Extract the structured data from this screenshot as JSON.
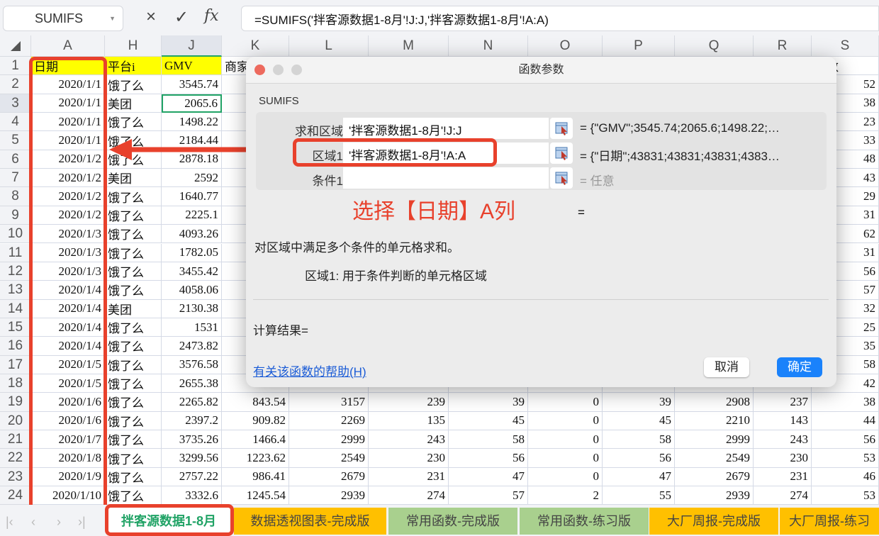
{
  "toolbar": {
    "name_box": "SUMIFS",
    "cancel_icon": "×",
    "confirm_icon": "✓",
    "fx_icon": "fx",
    "formula": "=SUMIFS('拌客源数据1-8月'!J:J,'拌客源数据1-8月'!A:A)"
  },
  "columns": [
    "A",
    "H",
    "J",
    "K",
    "L",
    "M",
    "N",
    "O",
    "P",
    "Q",
    "R",
    "S"
  ],
  "header_row": {
    "A": "日期",
    "H": "平台i",
    "J": "GMV",
    "K": "商家",
    "S": "人数"
  },
  "rows": [
    {
      "n": 2,
      "A": "2020/1/1",
      "H": "饿了么",
      "J": "3545.74",
      "S": "52"
    },
    {
      "n": 3,
      "A": "2020/1/1",
      "H": "美团",
      "J": "2065.6",
      "S": "38"
    },
    {
      "n": 4,
      "A": "2020/1/1",
      "H": "饿了么",
      "J": "1498.22",
      "S": "23"
    },
    {
      "n": 5,
      "A": "2020/1/1",
      "H": "饿了么",
      "J": "2184.44",
      "S": "33"
    },
    {
      "n": 6,
      "A": "2020/1/2",
      "H": "饿了么",
      "J": "2878.18",
      "S": "48"
    },
    {
      "n": 7,
      "A": "2020/1/2",
      "H": "美团",
      "J": "2592",
      "S": "43"
    },
    {
      "n": 8,
      "A": "2020/1/2",
      "H": "饿了么",
      "J": "1640.77",
      "S": "29"
    },
    {
      "n": 9,
      "A": "2020/1/2",
      "H": "饿了么",
      "J": "2225.1",
      "S": "31"
    },
    {
      "n": 10,
      "A": "2020/1/3",
      "H": "饿了么",
      "J": "4093.26",
      "S": "62"
    },
    {
      "n": 11,
      "A": "2020/1/3",
      "H": "饿了么",
      "J": "1782.05",
      "S": "31"
    },
    {
      "n": 12,
      "A": "2020/1/3",
      "H": "饿了么",
      "J": "3455.42",
      "S": "56"
    },
    {
      "n": 13,
      "A": "2020/1/4",
      "H": "饿了么",
      "J": "4058.06",
      "S": "57"
    },
    {
      "n": 14,
      "A": "2020/1/4",
      "H": "美团",
      "J": "2130.38",
      "S": "32"
    },
    {
      "n": 15,
      "A": "2020/1/4",
      "H": "饿了么",
      "J": "1531",
      "S": "25"
    },
    {
      "n": 16,
      "A": "2020/1/4",
      "H": "饿了么",
      "J": "2473.82",
      "S": "35"
    },
    {
      "n": 17,
      "A": "2020/1/5",
      "H": "饿了么",
      "J": "3576.58",
      "S": "58"
    },
    {
      "n": 18,
      "A": "2020/1/5",
      "H": "饿了么",
      "J": "2655.38",
      "S": "42"
    },
    {
      "n": 19,
      "A": "2020/1/6",
      "H": "饿了么",
      "J": "2265.82",
      "K": "843.54",
      "L": "3157",
      "M": "239",
      "N": "39",
      "O": "0",
      "P": "39",
      "Q": "2908",
      "R": "237",
      "S": "38"
    },
    {
      "n": 20,
      "A": "2020/1/6",
      "H": "饿了么",
      "J": "2397.2",
      "K": "909.82",
      "L": "2269",
      "M": "135",
      "N": "45",
      "O": "0",
      "P": "45",
      "Q": "2210",
      "R": "143",
      "S": "44"
    },
    {
      "n": 21,
      "A": "2020/1/7",
      "H": "饿了么",
      "J": "3735.26",
      "K": "1466.4",
      "L": "2999",
      "M": "243",
      "N": "58",
      "O": "0",
      "P": "58",
      "Q": "2999",
      "R": "243",
      "S": "56"
    },
    {
      "n": 22,
      "A": "2020/1/8",
      "H": "饿了么",
      "J": "3299.56",
      "K": "1223.62",
      "L": "2549",
      "M": "230",
      "N": "56",
      "O": "0",
      "P": "56",
      "Q": "2549",
      "R": "230",
      "S": "53"
    },
    {
      "n": 23,
      "A": "2020/1/9",
      "H": "饿了么",
      "J": "2757.22",
      "K": "986.41",
      "L": "2679",
      "M": "231",
      "N": "47",
      "O": "0",
      "P": "47",
      "Q": "2679",
      "R": "231",
      "S": "46"
    },
    {
      "n": 24,
      "A": "2020/1/10",
      "H": "饿了么",
      "J": "3332.6",
      "K": "1245.54",
      "L": "2939",
      "M": "274",
      "N": "57",
      "O": "2",
      "P": "55",
      "Q": "2939",
      "R": "274",
      "S": "53"
    }
  ],
  "dialog": {
    "title": "函数参数",
    "function": "SUMIFS",
    "args": [
      {
        "label": "求和区域",
        "value": "'拌客源数据1-8月'!J:J",
        "result": "= {\"GMV\";3545.74;2065.6;1498.22;…"
      },
      {
        "label": "区域1",
        "value": "'拌客源数据1-8月'!A:A",
        "result": "= {\"日期\";43831;43831;43831;4383…"
      },
      {
        "label": "条件1",
        "value": "",
        "result": "= 任意"
      }
    ],
    "overall_eq": "=",
    "description": "对区域中满足多个条件的单元格求和。",
    "arg_help": "区域1:  用于条件判断的单元格区域",
    "calc_result": "计算结果=",
    "help_link": "有关该函数的帮助(H)",
    "cancel": "取消",
    "ok": "确定"
  },
  "annotation": "选择【日期】A列",
  "colors": {
    "annotation_red": "#e8412c",
    "ok_blue": "#1a82fb",
    "header_yellow": "#ffff00",
    "active_green": "#21a366"
  },
  "sheet_tabs": [
    {
      "label": "拌客源数据1-8月",
      "color": "#ffffff",
      "active": true
    },
    {
      "label": "数据透视图表-完成版",
      "color": "#ffc000"
    },
    {
      "label": "常用函数-完成版",
      "color": "#a9d08e"
    },
    {
      "label": "常用函数-练习版",
      "color": "#a9d08e"
    },
    {
      "label": "大厂周报-完成版",
      "color": "#ffc000"
    },
    {
      "label": "大厂周报-练习",
      "color": "#ffc000"
    }
  ]
}
